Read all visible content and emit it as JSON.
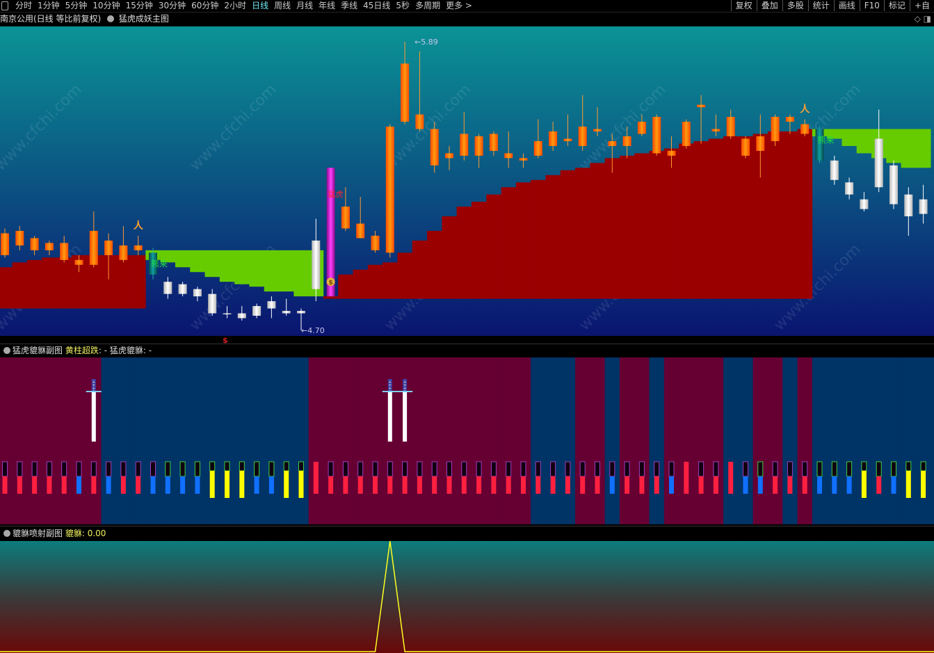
{
  "toolbar": {
    "periods": [
      "分时",
      "1分钟",
      "5分钟",
      "10分钟",
      "15分钟",
      "30分钟",
      "60分钟",
      "2小时",
      "日线",
      "周线",
      "月线",
      "年线",
      "季线",
      "45日线",
      "5秒",
      "多周期",
      "更多 >"
    ],
    "active_period": "日线",
    "right_buttons": [
      "复权",
      "叠加",
      "多股",
      "统计",
      "画线",
      "F10",
      "标记",
      "+自"
    ]
  },
  "main_chart": {
    "title": "南京公用(日线 等比前复权)",
    "indicator": "猛虎成妖主图",
    "high_label": "5.89",
    "low_label": "4.70",
    "signal_bear": "熊来",
    "signal_tiger": "猛虎",
    "dollar_marker": "$",
    "watermark": "www.cfchi.com",
    "colors": {
      "up": "#ff6a00",
      "down": "#e8e8e8",
      "red_band": "#9a0000",
      "green_band": "#66cc00",
      "signal_bar": "#d020d0",
      "bear_candle": "#0a8080"
    },
    "candles": [
      [
        5.01,
        5.1,
        5.12,
        5.0
      ],
      [
        5.05,
        5.11,
        5.13,
        5.03
      ],
      [
        5.03,
        5.08,
        5.09,
        5.01
      ],
      [
        5.03,
        5.06,
        5.07,
        5.01
      ],
      [
        4.99,
        5.06,
        5.09,
        4.98
      ],
      [
        4.97,
        4.99,
        5.01,
        4.94
      ],
      [
        4.97,
        5.11,
        5.19,
        4.96
      ],
      [
        5.01,
        5.07,
        5.1,
        4.91
      ],
      [
        4.99,
        5.05,
        5.13,
        4.98
      ],
      [
        5.03,
        5.05,
        5.09,
        5.01
      ],
      [
        5.02,
        4.93,
        5.04,
        4.91
      ],
      [
        4.9,
        4.85,
        4.92,
        4.83
      ],
      [
        4.89,
        4.85,
        4.9,
        4.84
      ],
      [
        4.87,
        4.84,
        4.88,
        4.82
      ],
      [
        4.85,
        4.77,
        4.87,
        4.76
      ],
      [
        4.77,
        4.77,
        4.8,
        4.75
      ],
      [
        4.77,
        4.75,
        4.8,
        4.74
      ],
      [
        4.8,
        4.76,
        4.81,
        4.75
      ],
      [
        4.82,
        4.79,
        4.84,
        4.75
      ],
      [
        4.78,
        4.77,
        4.83,
        4.76
      ],
      [
        4.78,
        4.77,
        4.79,
        4.7
      ],
      [
        5.07,
        4.87,
        5.16,
        4.82
      ],
      [
        4.84,
        5.37,
        5.37,
        4.84
      ],
      [
        5.12,
        5.21,
        5.29,
        5.11
      ],
      [
        5.08,
        5.14,
        5.25,
        5.08
      ],
      [
        5.03,
        5.09,
        5.11,
        5.02
      ],
      [
        5.02,
        5.54,
        5.55,
        5.0
      ],
      [
        5.56,
        5.8,
        5.89,
        5.55
      ],
      [
        5.53,
        5.59,
        5.85,
        5.52
      ],
      [
        5.38,
        5.53,
        5.56,
        5.35
      ],
      [
        5.41,
        5.43,
        5.46,
        5.36
      ],
      [
        5.42,
        5.51,
        5.6,
        5.4
      ],
      [
        5.42,
        5.5,
        5.51,
        5.37
      ],
      [
        5.44,
        5.51,
        5.52,
        5.42
      ],
      [
        5.41,
        5.43,
        5.52,
        5.37
      ],
      [
        5.4,
        5.41,
        5.43,
        5.37
      ],
      [
        5.42,
        5.48,
        5.57,
        5.41
      ],
      [
        5.46,
        5.52,
        5.56,
        5.44
      ],
      [
        5.48,
        5.49,
        5.59,
        5.46
      ],
      [
        5.46,
        5.54,
        5.67,
        5.44
      ],
      [
        5.52,
        5.53,
        5.62,
        5.5
      ],
      [
        5.46,
        5.48,
        5.51,
        5.35
      ],
      [
        5.46,
        5.5,
        5.54,
        5.41
      ],
      [
        5.51,
        5.56,
        5.59,
        5.5
      ],
      [
        5.43,
        5.58,
        5.59,
        5.42
      ],
      [
        5.42,
        5.44,
        5.5,
        5.37
      ],
      [
        5.46,
        5.56,
        5.57,
        5.45
      ],
      [
        5.62,
        5.63,
        5.67,
        5.47
      ],
      [
        5.52,
        5.53,
        5.59,
        5.5
      ],
      [
        5.5,
        5.58,
        5.61,
        5.49
      ],
      [
        5.42,
        5.49,
        5.5,
        5.41
      ],
      [
        5.44,
        5.5,
        5.59,
        5.33
      ],
      [
        5.48,
        5.58,
        5.59,
        5.46
      ],
      [
        5.56,
        5.58,
        5.59,
        5.51
      ],
      [
        5.51,
        5.55,
        5.57,
        5.5
      ],
      [
        5.53,
        5.4,
        5.54,
        5.39
      ],
      [
        5.4,
        5.32,
        5.42,
        5.3
      ],
      [
        5.31,
        5.26,
        5.33,
        5.24
      ],
      [
        5.24,
        5.2,
        5.27,
        5.19
      ],
      [
        5.49,
        5.29,
        5.61,
        5.27
      ],
      [
        5.38,
        5.22,
        5.4,
        5.2
      ],
      [
        5.26,
        5.17,
        5.29,
        5.09
      ],
      [
        5.24,
        5.18,
        5.3,
        5.14
      ]
    ],
    "bear_signal_indices": [
      10,
      55
    ],
    "tiger_signal_index": 22,
    "runner_indices": [
      9,
      54
    ],
    "red_bands": [
      {
        "start": 0,
        "bottom": 4.79,
        "tops": [
          4.96,
          4.98,
          4.99,
          5.0,
          5.0,
          5.01,
          5.01,
          5.01,
          5.01,
          5.01
        ]
      },
      {
        "start": 22,
        "bottom": 4.83,
        "tops": [
          4.84,
          4.93,
          4.95,
          4.97,
          4.98,
          5.02,
          5.07,
          5.11,
          5.17,
          5.21,
          5.23,
          5.26,
          5.29,
          5.31,
          5.32,
          5.34,
          5.36,
          5.37,
          5.39,
          5.41,
          5.42,
          5.43,
          5.44,
          5.45,
          5.47,
          5.48,
          5.49,
          5.5,
          5.5,
          5.51,
          5.52,
          5.52,
          5.53
        ]
      }
    ],
    "green_bands": [
      {
        "start": 10,
        "top": 5.03,
        "bottoms": [
          4.99,
          4.98,
          4.96,
          4.94,
          4.92,
          4.9,
          4.89,
          4.88,
          4.86,
          4.86,
          4.84,
          4.84
        ]
      },
      {
        "start": 55,
        "top": 5.53,
        "bottoms": [
          5.5,
          5.49,
          5.46,
          5.43,
          5.41,
          5.39,
          5.37,
          5.37
        ]
      }
    ]
  },
  "sub_chart_1": {
    "title": "猛虎貔貅副图",
    "label1": "黄柱超跌",
    "value1": ": -",
    "label2": "猛虎貔貅",
    "value2": ": -",
    "colors": {
      "magenta_bg": "#660033",
      "navy_bg": "#003366",
      "red": "#ff2040",
      "blue": "#1070ff",
      "yellow": "#ffff00"
    },
    "backgrounds": "MMMMMMMNNNNNNNNNNNNNNMMMMMMMMMMMMMMMNNNMMNMMNMMMMNNMMNMNNNNNNNN",
    "bars": "RRRRRBRBRRBbbbYYYbbYYSRRRRRRRRRRRRRRRRRRRBRRRBSRRSBbRRRbbbYrbYY",
    "sword_indices": [
      6,
      26,
      27
    ]
  },
  "sub_chart_2": {
    "title": "貔貅喷射副图",
    "label": "貔貅",
    "value": ": 0.00",
    "values": [
      0,
      0,
      0,
      0,
      0,
      0,
      0,
      0,
      0,
      0,
      0,
      0,
      0,
      0,
      0,
      0,
      0,
      0,
      0,
      0,
      0,
      0,
      0,
      0,
      0,
      0,
      1,
      0,
      0,
      0,
      0,
      0,
      0,
      0,
      0,
      0,
      0,
      0,
      0,
      0,
      0,
      0,
      0,
      0,
      0,
      0,
      0,
      0,
      0,
      0,
      0,
      0,
      0,
      0,
      0,
      0,
      0,
      0,
      0,
      0,
      0,
      0,
      0
    ]
  }
}
